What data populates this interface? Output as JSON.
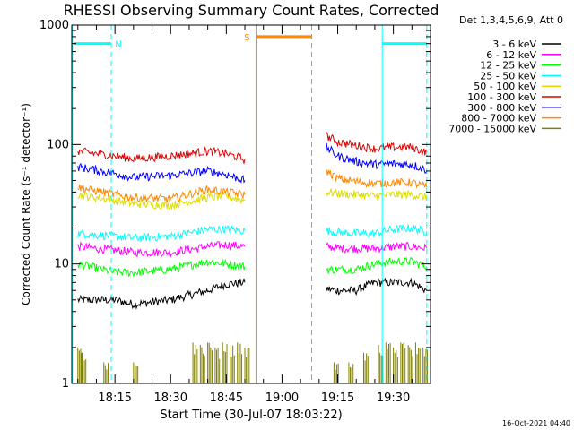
{
  "chart_data": {
    "type": "line",
    "title": "RHESSI Observing Summary Count Rates, Corrected",
    "xlabel": "Start Time (30-Jul-07 18:03:22)",
    "ylabel": "Corrected Count Rate (s⁻¹ detector⁻¹)",
    "yscale": "log",
    "ylim": [
      1,
      1000
    ],
    "xlim": [
      "18:03:22",
      "19:40:00"
    ],
    "x_ticks": [
      "18:15",
      "18:30",
      "18:45",
      "19:00",
      "19:15",
      "19:30"
    ],
    "y_ticks": [
      "1",
      "10",
      "100",
      "1000"
    ],
    "grid": false,
    "legend_title": "Det 1,3,4,5,6,9, Att 0",
    "legend_placement": "right",
    "footer_timestamp": "16-Oct-2021 04:40",
    "data_gap": [
      "18:52:00",
      "19:12:00"
    ],
    "series": [
      {
        "name": "3 - 6 keV",
        "color": "#000000",
        "segments": [
          [
            [
              "18:05",
              5.0
            ],
            [
              "18:15",
              5.0
            ],
            [
              "18:20",
              4.6
            ],
            [
              "18:30",
              5.0
            ],
            [
              "18:40",
              6.0
            ],
            [
              "18:45",
              6.8
            ],
            [
              "18:50",
              7.0
            ]
          ],
          [
            [
              "19:12",
              6.2
            ],
            [
              "19:15",
              6.0
            ],
            [
              "19:20",
              6.0
            ],
            [
              "19:25",
              7.0
            ],
            [
              "19:30",
              7.0
            ],
            [
              "19:35",
              7.0
            ],
            [
              "19:39",
              6.0
            ]
          ]
        ]
      },
      {
        "name": "6 - 12 keV",
        "color": "#ff00ff",
        "segments": [
          [
            [
              "18:05",
              14.0
            ],
            [
              "18:15",
              13.0
            ],
            [
              "18:20",
              12.5
            ],
            [
              "18:30",
              12.5
            ],
            [
              "18:40",
              14.0
            ],
            [
              "18:45",
              14.5
            ],
            [
              "18:50",
              14.0
            ]
          ],
          [
            [
              "19:12",
              14.0
            ],
            [
              "19:15",
              13.5
            ],
            [
              "19:20",
              13.5
            ],
            [
              "19:25",
              13.5
            ],
            [
              "19:30",
              14.0
            ],
            [
              "19:35",
              14.0
            ],
            [
              "19:39",
              13.5
            ]
          ]
        ]
      },
      {
        "name": "12 - 25 keV",
        "color": "#00ff00",
        "segments": [
          [
            [
              "18:05",
              10.0
            ],
            [
              "18:15",
              8.5
            ],
            [
              "18:20",
              8.5
            ],
            [
              "18:30",
              9.0
            ],
            [
              "18:40",
              10.5
            ],
            [
              "18:45",
              10.0
            ],
            [
              "18:50",
              9.5
            ]
          ],
          [
            [
              "19:12",
              9.0
            ],
            [
              "19:15",
              9.0
            ],
            [
              "19:20",
              9.0
            ],
            [
              "19:25",
              10.0
            ],
            [
              "19:30",
              10.5
            ],
            [
              "19:35",
              10.5
            ],
            [
              "19:39",
              9.5
            ]
          ]
        ]
      },
      {
        "name": "25 - 50 keV",
        "color": "#00ffff",
        "segments": [
          [
            [
              "18:05",
              18.0
            ],
            [
              "18:15",
              17.0
            ],
            [
              "18:20",
              16.5
            ],
            [
              "18:30",
              17.0
            ],
            [
              "18:40",
              19.5
            ],
            [
              "18:45",
              19.5
            ],
            [
              "18:50",
              19.0
            ]
          ],
          [
            [
              "19:12",
              19.0
            ],
            [
              "19:15",
              18.5
            ],
            [
              "19:20",
              18.0
            ],
            [
              "19:25",
              18.0
            ],
            [
              "19:30",
              19.5
            ],
            [
              "19:35",
              20.0
            ],
            [
              "19:39",
              18.5
            ]
          ]
        ]
      },
      {
        "name": "50 - 100 keV",
        "color": "#dddd00",
        "segments": [
          [
            [
              "18:05",
              38.0
            ],
            [
              "18:15",
              34.0
            ],
            [
              "18:20",
              32.0
            ],
            [
              "18:30",
              31.0
            ],
            [
              "18:40",
              36.0
            ],
            [
              "18:45",
              37.0
            ],
            [
              "18:50",
              34.0
            ]
          ],
          [
            [
              "19:12",
              40.0
            ],
            [
              "19:15",
              39.0
            ],
            [
              "19:20",
              38.0
            ],
            [
              "19:25",
              37.0
            ],
            [
              "19:30",
              38.0
            ],
            [
              "19:35",
              38.0
            ],
            [
              "19:39",
              36.0
            ]
          ]
        ]
      },
      {
        "name": "100 - 300 keV",
        "color": "#dd0000",
        "segments": [
          [
            [
              "18:05",
              88.0
            ],
            [
              "18:15",
              80.0
            ],
            [
              "18:20",
              76.0
            ],
            [
              "18:30",
              80.0
            ],
            [
              "18:40",
              88.0
            ],
            [
              "18:45",
              84.0
            ],
            [
              "18:50",
              75.0
            ]
          ],
          [
            [
              "19:12",
              118.0
            ],
            [
              "19:15",
              105.0
            ],
            [
              "19:20",
              98.0
            ],
            [
              "19:25",
              92.0
            ],
            [
              "19:30",
              95.0
            ],
            [
              "19:35",
              95.0
            ],
            [
              "19:39",
              85.0
            ]
          ]
        ]
      },
      {
        "name": "300 - 800 keV",
        "color": "#0000ff",
        "segments": [
          [
            [
              "18:05",
              65.0
            ],
            [
              "18:15",
              57.0
            ],
            [
              "18:20",
              53.0
            ],
            [
              "18:30",
              55.0
            ],
            [
              "18:40",
              60.0
            ],
            [
              "18:45",
              56.0
            ],
            [
              "18:50",
              50.0
            ]
          ],
          [
            [
              "19:12",
              95.0
            ],
            [
              "19:15",
              80.0
            ],
            [
              "19:20",
              72.0
            ],
            [
              "19:25",
              68.0
            ],
            [
              "19:30",
              69.0
            ],
            [
              "19:35",
              68.0
            ],
            [
              "19:39",
              61.0
            ]
          ]
        ]
      },
      {
        "name": "800 - 7000 keV",
        "color": "#ff8800",
        "segments": [
          [
            [
              "18:05",
              44.0
            ],
            [
              "18:15",
              38.0
            ],
            [
              "18:20",
              36.0
            ],
            [
              "18:30",
              35.0
            ],
            [
              "18:40",
              42.0
            ],
            [
              "18:45",
              40.0
            ],
            [
              "18:50",
              38.0
            ]
          ],
          [
            [
              "19:12",
              60.0
            ],
            [
              "19:15",
              52.0
            ],
            [
              "19:20",
              49.0
            ],
            [
              "19:25",
              47.0
            ],
            [
              "19:30",
              48.0
            ],
            [
              "19:35",
              48.0
            ],
            [
              "19:39",
              44.0
            ]
          ]
        ]
      },
      {
        "name": "7000 - 15000 keV",
        "color": "#808000",
        "baseline": 1,
        "spikes": [
          [
            "18:05",
            2.0
          ],
          [
            "18:06",
            1.8
          ],
          [
            "18:12",
            1.5
          ],
          [
            "18:20",
            1.5
          ],
          [
            "18:36",
            2.2
          ],
          [
            "18:38",
            2.1
          ],
          [
            "18:40",
            2.2
          ],
          [
            "18:42",
            2.0
          ],
          [
            "18:44",
            2.2
          ],
          [
            "18:46",
            2.1
          ],
          [
            "18:48",
            2.2
          ],
          [
            "18:50",
            2.0
          ],
          [
            "19:14",
            1.5
          ],
          [
            "19:18",
            1.5
          ],
          [
            "19:22",
            1.8
          ],
          [
            "19:26",
            2.1
          ],
          [
            "19:28",
            2.2
          ],
          [
            "19:30",
            2.0
          ],
          [
            "19:32",
            2.2
          ],
          [
            "19:34",
            2.1
          ],
          [
            "19:36",
            2.2
          ],
          [
            "19:38",
            2.0
          ]
        ]
      }
    ],
    "flags": [
      {
        "label": "N",
        "color": "#00ffff",
        "band": [
          1,
          1000
        ],
        "bars": [
          [
            "18:04",
            "18:14"
          ],
          [
            "19:27",
            "19:39"
          ]
        ],
        "bar_level": 700,
        "lines_solid": [
          "18:03:30",
          "19:27"
        ],
        "lines_dashed": [
          "18:14",
          "19:39"
        ]
      },
      {
        "label": "S",
        "color": "#ff8800",
        "band": [
          1,
          1000
        ],
        "bars": [
          [
            "18:53",
            "19:08"
          ]
        ],
        "bar_level": 800,
        "lines_solid": [
          "18:53"
        ],
        "lines_dashed": [
          "19:08"
        ]
      }
    ]
  }
}
